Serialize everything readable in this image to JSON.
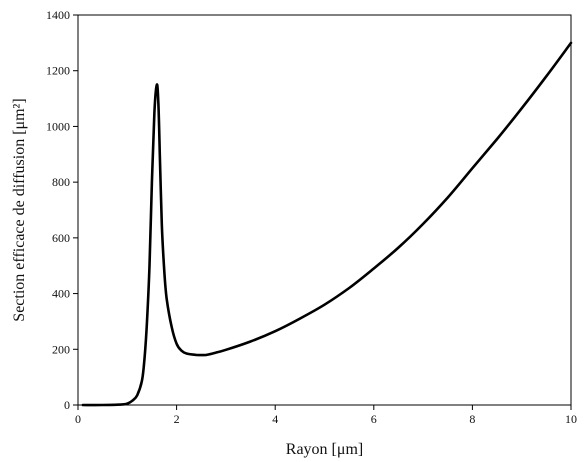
{
  "chart_data": {
    "type": "line",
    "title": "",
    "xlabel": "Rayon [μm]",
    "ylabel": "Section efficace de diffusion [μm²]",
    "xlim": [
      0,
      10
    ],
    "ylim": [
      0,
      1400
    ],
    "x_ticks": [
      0,
      2,
      4,
      6,
      8,
      10
    ],
    "y_ticks": [
      0,
      200,
      400,
      600,
      800,
      1000,
      1200,
      1400
    ],
    "x_tick_labels": [
      "0",
      "2",
      "4",
      "6",
      "8",
      "10"
    ],
    "y_tick_labels": [
      "0",
      "200",
      "400",
      "600",
      "800",
      "1000",
      "1200",
      "1400"
    ],
    "grid": false,
    "legend": "none",
    "series": [
      {
        "color": "#000000",
        "x": [
          0.1,
          0.5,
          0.9,
          1.0,
          1.1,
          1.2,
          1.3,
          1.35,
          1.4,
          1.45,
          1.5,
          1.55,
          1.6,
          1.63,
          1.66,
          1.7,
          1.75,
          1.8,
          1.9,
          2.0,
          2.1,
          2.2,
          2.4,
          2.6,
          2.8,
          3.0,
          3.5,
          4.0,
          4.5,
          5.0,
          5.5,
          6.0,
          6.5,
          7.0,
          7.5,
          8.0,
          8.5,
          9.0,
          9.5,
          10.0
        ],
        "y": [
          0,
          0,
          2,
          5,
          15,
          35,
          90,
          170,
          300,
          500,
          800,
          1050,
          1150,
          1080,
          900,
          650,
          480,
          380,
          280,
          220,
          195,
          185,
          180,
          180,
          188,
          198,
          228,
          265,
          310,
          360,
          420,
          490,
          565,
          650,
          745,
          850,
          955,
          1065,
          1180,
          1300
        ]
      }
    ]
  }
}
